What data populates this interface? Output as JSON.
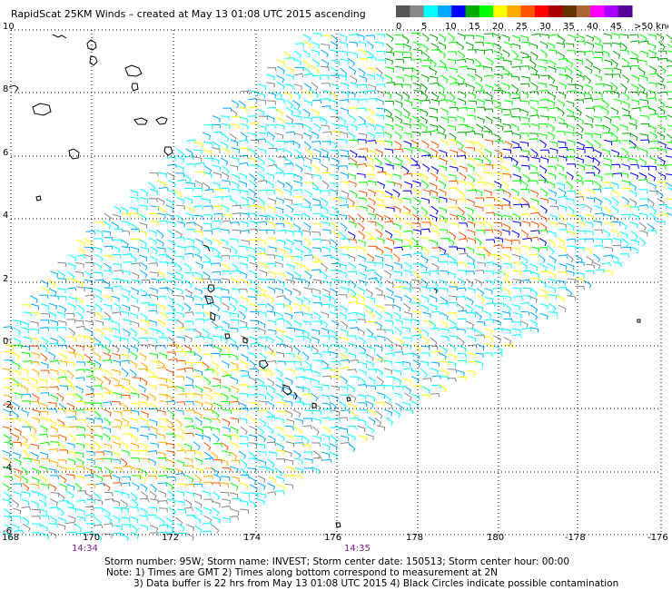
{
  "header": {
    "title": "RapidScat 25KM Winds – created at May 13 01:08 UTC 2015 ascending"
  },
  "legend": {
    "labels": [
      "0",
      "5",
      "10",
      "15",
      "20",
      "25",
      "30",
      "35",
      "40",
      "45",
      ">50 knots"
    ],
    "colors": [
      "#555555",
      "#888888",
      "#00ffff",
      "#00aaff",
      "#0000ff",
      "#00aa00",
      "#00ff00",
      "#ffff00",
      "#ffaa00",
      "#ff5500",
      "#ff0000",
      "#aa0000",
      "#663300",
      "#aa6633",
      "#ff00ff",
      "#aa00ff",
      "#550099"
    ]
  },
  "map": {
    "lat_labels": [
      "10",
      "8",
      "6",
      "4",
      "2",
      "0",
      "-2",
      "-4",
      "-6"
    ],
    "lon_labels": [
      "168",
      "170",
      "172",
      "174",
      "176",
      "178",
      "180",
      "-178",
      "-176"
    ],
    "time_labels": [
      "14:34",
      "14:35"
    ],
    "grid": true,
    "islands_present": true
  },
  "footer": {
    "storm_line": "Storm number: 95W;  Storm name: INVEST;  Storm center date: 150513;  Storm center hour: 00:00",
    "note1": "Note: 1) Times are GMT  2) Times along bottom correspond to measurement at 2N",
    "note2": "3) Data buffer is 22 hrs from May 13 01:08 UTC 2015  4) Black Circles indicate possible contamination"
  }
}
